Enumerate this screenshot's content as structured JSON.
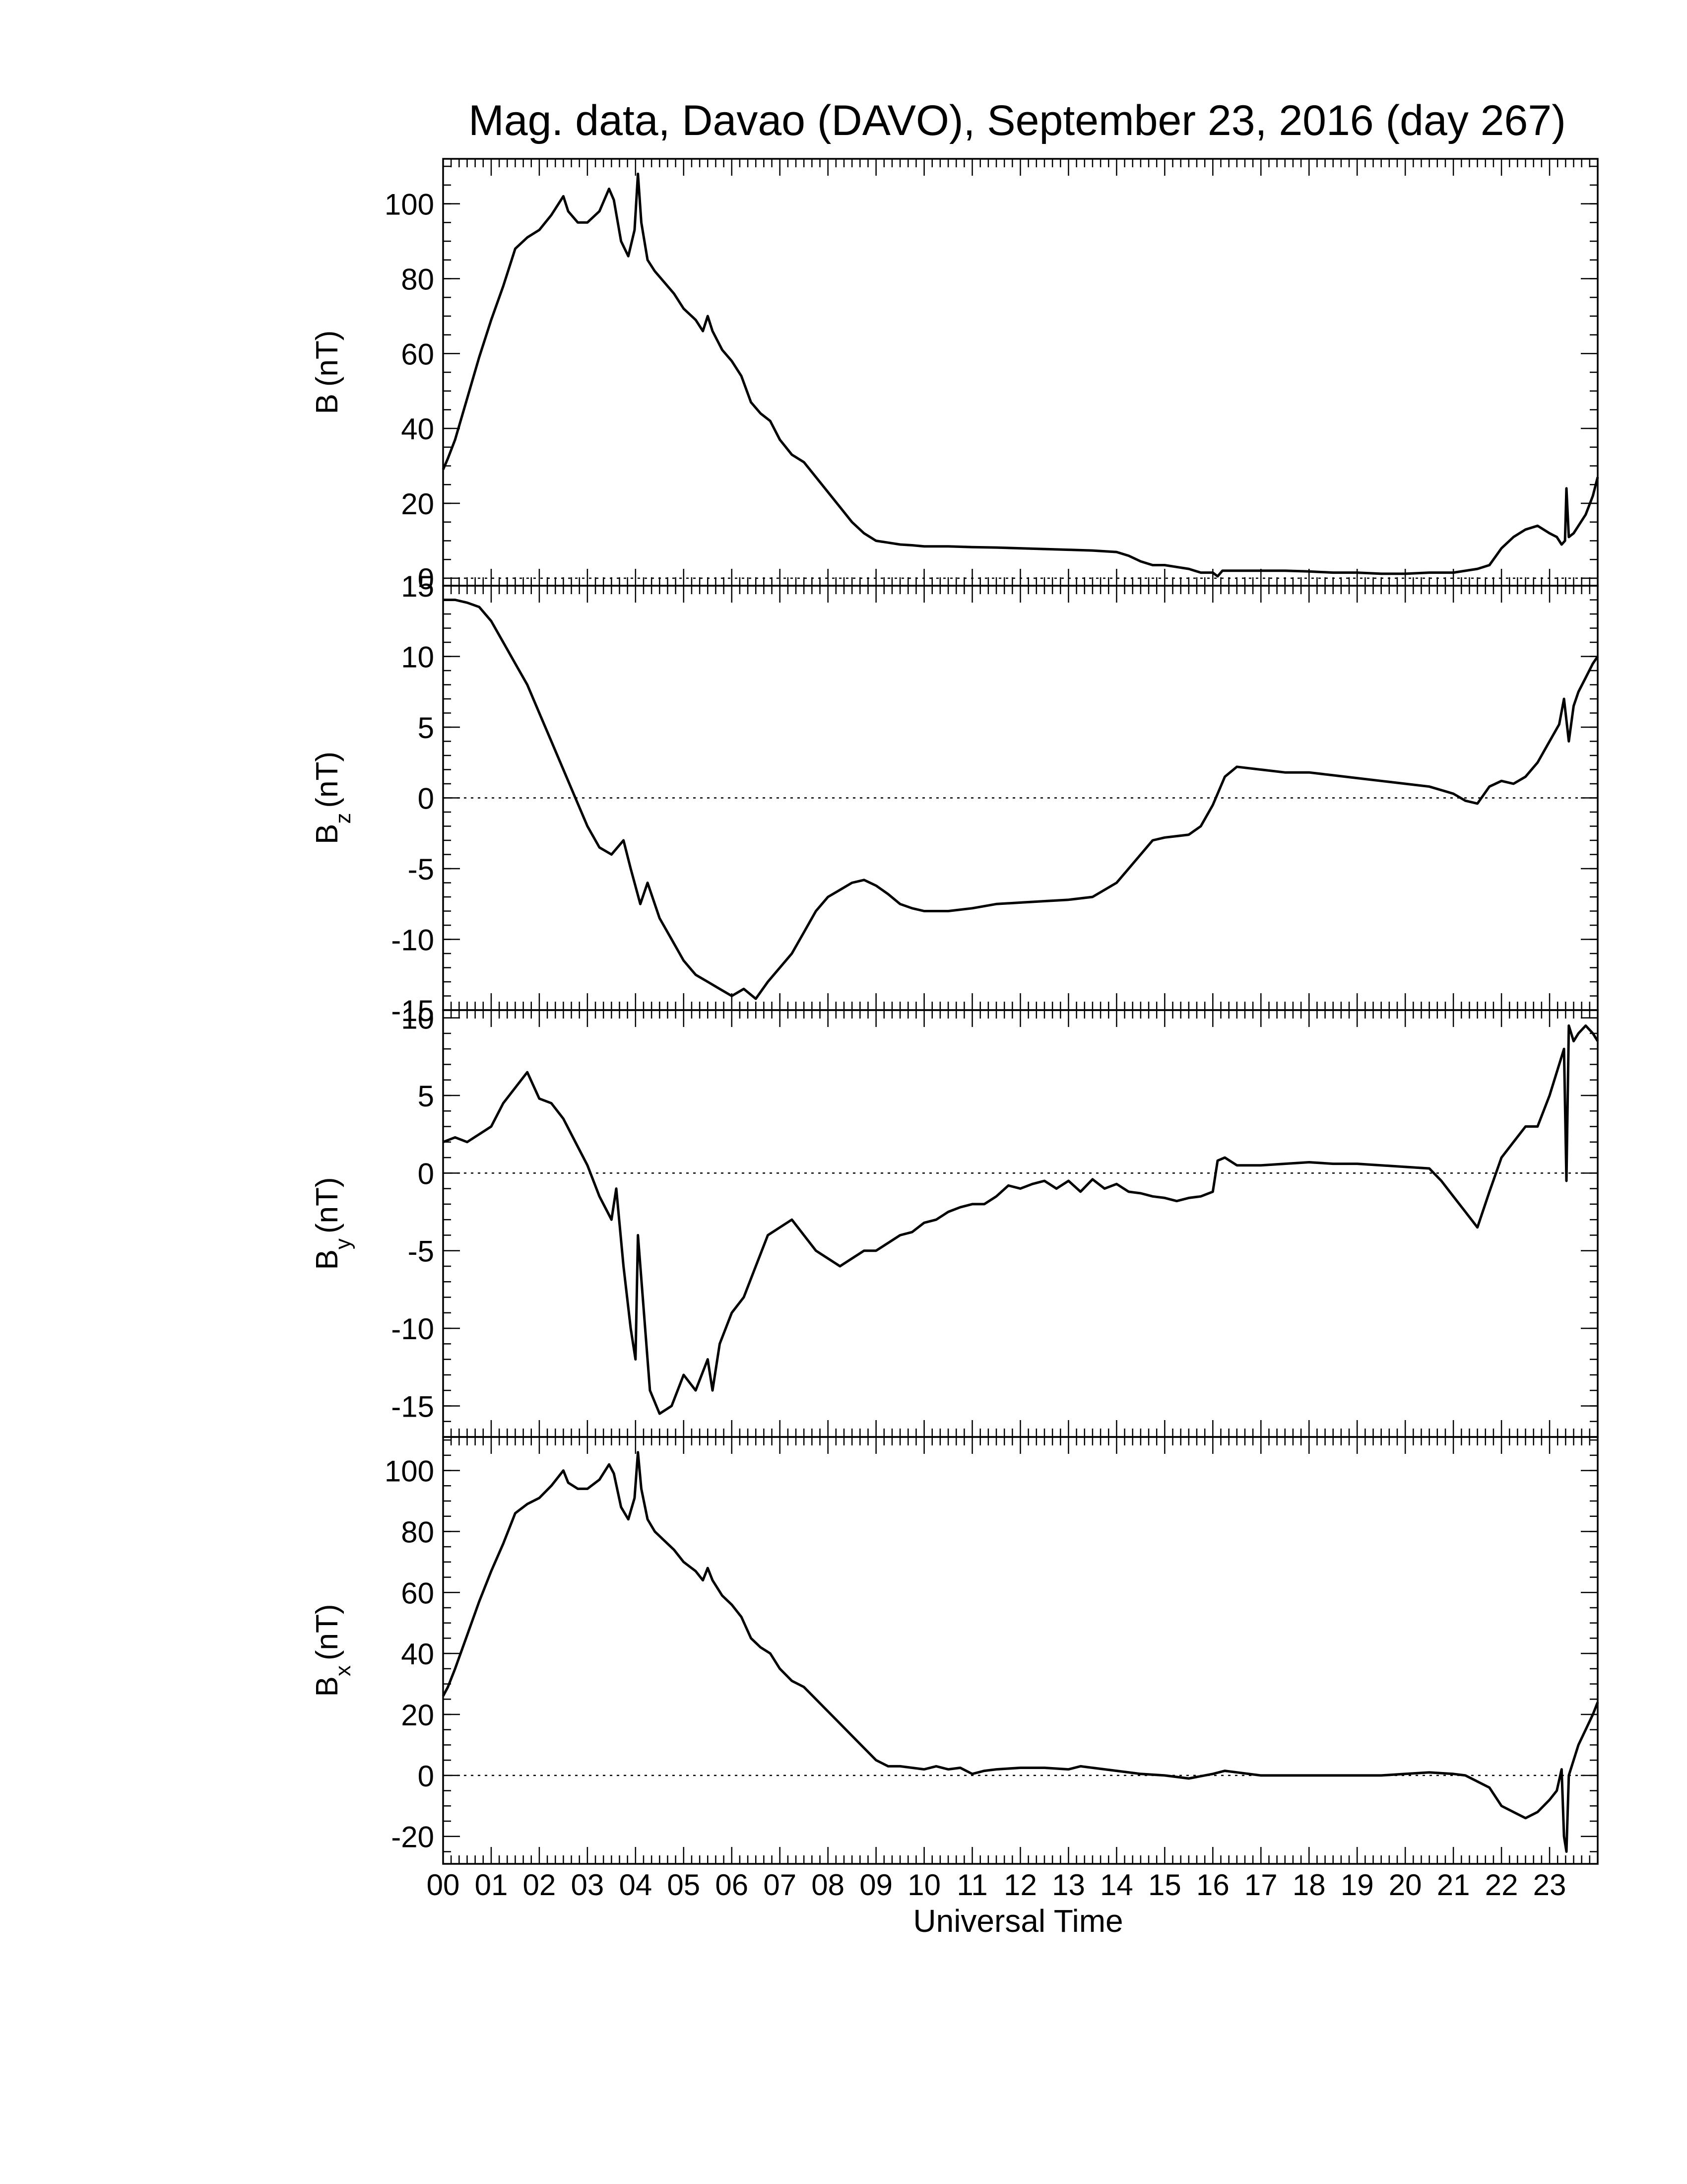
{
  "chart_data": {
    "type": "line",
    "title": "Mag. data, Davao (DAVO), September 23, 2016 (day 267)",
    "xlabel": "Universal Time",
    "x_tick_labels": [
      "00",
      "01",
      "02",
      "03",
      "04",
      "05",
      "06",
      "07",
      "08",
      "09",
      "10",
      "11",
      "12",
      "13",
      "14",
      "15",
      "16",
      "17",
      "18",
      "19",
      "20",
      "21",
      "22",
      "23"
    ],
    "xlim": [
      0,
      24
    ],
    "x_unit": "hours UT",
    "line_color": "#000000",
    "zero_line_style": "dotted",
    "panels": [
      {
        "id": "B",
        "ylabel_main": "B",
        "ylabel_sub": "",
        "ylabel_unit": "(nT)",
        "ylim": [
          -2,
          112
        ],
        "yticks": [
          0,
          20,
          40,
          60,
          80,
          100
        ],
        "ytick_labels": [
          "0",
          "20",
          "40",
          "60",
          "80",
          "100"
        ],
        "ytick_minor": 5,
        "series": {
          "x": [
            0,
            0.1,
            0.25,
            0.5,
            0.75,
            1.0,
            1.25,
            1.5,
            1.75,
            2.0,
            2.25,
            2.5,
            2.6,
            2.8,
            3.0,
            3.25,
            3.45,
            3.55,
            3.7,
            3.85,
            3.98,
            4.05,
            4.12,
            4.25,
            4.4,
            4.6,
            4.8,
            5.0,
            5.25,
            5.4,
            5.5,
            5.6,
            5.8,
            6.0,
            6.2,
            6.4,
            6.6,
            6.8,
            7.0,
            7.25,
            7.5,
            7.75,
            8.0,
            8.25,
            8.5,
            8.75,
            9.0,
            9.25,
            9.5,
            9.75,
            10.0,
            10.5,
            11.0,
            11.5,
            12.0,
            12.5,
            13.0,
            13.5,
            14.0,
            14.25,
            14.5,
            14.75,
            15.0,
            15.25,
            15.5,
            15.75,
            16.0,
            16.1,
            16.2,
            16.5,
            17.0,
            17.5,
            18.0,
            18.5,
            19.0,
            19.5,
            20.0,
            20.5,
            21.0,
            21.5,
            21.75,
            22.0,
            22.25,
            22.5,
            22.75,
            23.0,
            23.15,
            23.25,
            23.32,
            23.35,
            23.4,
            23.5,
            23.6,
            23.75,
            23.9,
            24.0
          ],
          "y": [
            29,
            32,
            37,
            48,
            59,
            69,
            78,
            88,
            91,
            93,
            97,
            102,
            98,
            95,
            95,
            98,
            104,
            101,
            90,
            86,
            93,
            108,
            95,
            85,
            82,
            79,
            76,
            72,
            69,
            66,
            70,
            66,
            61,
            58,
            54,
            47,
            44,
            42,
            37,
            33,
            31,
            27,
            23,
            19,
            15,
            12,
            10,
            9.5,
            9,
            8.8,
            8.5,
            8.5,
            8.3,
            8.2,
            8.0,
            7.8,
            7.6,
            7.4,
            7.0,
            6.0,
            4.5,
            3.5,
            3.5,
            3.0,
            2.5,
            1.5,
            1.5,
            0.5,
            2.0,
            2.0,
            2.0,
            2.0,
            1.8,
            1.5,
            1.5,
            1.2,
            1.2,
            1.5,
            1.5,
            2.5,
            3.5,
            8,
            11,
            13,
            14,
            12,
            11,
            9,
            10,
            24,
            11,
            12,
            14,
            17,
            22,
            27
          ]
        }
      },
      {
        "id": "Bz",
        "ylabel_main": "B",
        "ylabel_sub": "z",
        "ylabel_unit": "(nT)",
        "ylim": [
          -15,
          15
        ],
        "yticks": [
          -15,
          -10,
          -5,
          0,
          5,
          10,
          15
        ],
        "ytick_labels": [
          "-15",
          "-10",
          "-5",
          "0",
          "5",
          "10",
          "15"
        ],
        "ytick_minor": 1,
        "series": {
          "x": [
            0,
            0.25,
            0.5,
            0.75,
            1.0,
            1.25,
            1.5,
            1.75,
            2.0,
            2.25,
            2.5,
            2.75,
            3.0,
            3.25,
            3.5,
            3.75,
            3.9,
            4.1,
            4.25,
            4.5,
            4.75,
            5.0,
            5.25,
            5.5,
            5.75,
            6.0,
            6.25,
            6.5,
            6.75,
            7.0,
            7.25,
            7.5,
            7.75,
            8.0,
            8.25,
            8.5,
            8.75,
            9.0,
            9.25,
            9.5,
            9.75,
            10.0,
            10.5,
            11.0,
            11.5,
            12.0,
            12.5,
            13.0,
            13.5,
            14.0,
            14.25,
            14.5,
            14.75,
            15.0,
            15.25,
            15.5,
            15.75,
            16.0,
            16.25,
            16.5,
            17.0,
            17.5,
            18.0,
            18.5,
            19.0,
            19.5,
            20.0,
            20.5,
            21.0,
            21.25,
            21.5,
            21.75,
            22.0,
            22.25,
            22.5,
            22.75,
            23.0,
            23.2,
            23.3,
            23.4,
            23.5,
            23.6,
            23.75,
            23.9,
            24.0
          ],
          "y": [
            14,
            14,
            13.8,
            13.5,
            12.5,
            11,
            9.5,
            8,
            6,
            4,
            2,
            0,
            -2,
            -3.5,
            -4,
            -3,
            -5,
            -7.5,
            -6,
            -8.5,
            -10,
            -11.5,
            -12.5,
            -13,
            -13.5,
            -14,
            -13.5,
            -14.2,
            -13,
            -12,
            -11,
            -9.5,
            -8,
            -7,
            -6.5,
            -6,
            -5.8,
            -6.2,
            -6.8,
            -7.5,
            -7.8,
            -8,
            -8,
            -7.8,
            -7.5,
            -7.4,
            -7.3,
            -7.2,
            -7,
            -6,
            -5,
            -4,
            -3,
            -2.8,
            -2.7,
            -2.6,
            -2,
            -0.5,
            1.5,
            2.2,
            2.0,
            1.8,
            1.8,
            1.6,
            1.4,
            1.2,
            1.0,
            0.8,
            0.3,
            -0.2,
            -0.4,
            0.8,
            1.2,
            1.0,
            1.5,
            2.5,
            4.0,
            5.2,
            7.0,
            4.0,
            6.5,
            7.5,
            8.5,
            9.5,
            10
          ]
        }
      },
      {
        "id": "By",
        "ylabel_main": "B",
        "ylabel_sub": "y",
        "ylabel_unit": "(nT)",
        "ylim": [
          -17,
          10.5
        ],
        "yticks": [
          -15,
          -10,
          -5,
          0,
          5,
          10
        ],
        "ytick_labels": [
          "-15",
          "-10",
          "-5",
          "0",
          "5",
          "10"
        ],
        "ytick_minor": 1,
        "series": {
          "x": [
            0,
            0.25,
            0.5,
            0.75,
            1.0,
            1.25,
            1.5,
            1.75,
            2.0,
            2.25,
            2.5,
            2.75,
            3.0,
            3.25,
            3.5,
            3.6,
            3.75,
            3.9,
            4.0,
            4.05,
            4.15,
            4.3,
            4.5,
            4.75,
            5.0,
            5.25,
            5.5,
            5.6,
            5.75,
            6.0,
            6.25,
            6.5,
            6.75,
            7.0,
            7.25,
            7.5,
            7.75,
            8.0,
            8.25,
            8.5,
            8.75,
            9.0,
            9.25,
            9.5,
            9.75,
            10.0,
            10.25,
            10.5,
            10.75,
            11.0,
            11.25,
            11.5,
            11.75,
            12.0,
            12.25,
            12.5,
            12.75,
            13.0,
            13.25,
            13.5,
            13.75,
            14.0,
            14.25,
            14.5,
            14.75,
            15.0,
            15.25,
            15.5,
            15.75,
            16.0,
            16.1,
            16.25,
            16.5,
            17.0,
            17.5,
            18.0,
            18.5,
            19.0,
            19.5,
            20.0,
            20.5,
            20.75,
            21.0,
            21.25,
            21.5,
            21.75,
            22.0,
            22.25,
            22.5,
            22.75,
            23.0,
            23.2,
            23.3,
            23.35,
            23.4,
            23.5,
            23.6,
            23.75,
            23.9,
            24.0
          ],
          "y": [
            2,
            2.3,
            2.0,
            2.5,
            3.0,
            4.5,
            5.5,
            6.5,
            4.8,
            4.5,
            3.5,
            2.0,
            0.5,
            -1.5,
            -3,
            -1,
            -6,
            -10,
            -12,
            -4,
            -8,
            -14,
            -15.5,
            -15,
            -13,
            -14,
            -12,
            -14,
            -11,
            -9,
            -8,
            -6,
            -4,
            -3.5,
            -3,
            -4,
            -5,
            -5.5,
            -6,
            -5.5,
            -5,
            -5,
            -4.5,
            -4,
            -3.8,
            -3.2,
            -3.0,
            -2.5,
            -2.2,
            -2.0,
            -2.0,
            -1.5,
            -0.8,
            -1.0,
            -0.7,
            -0.5,
            -1.0,
            -0.5,
            -1.2,
            -0.4,
            -1.0,
            -0.7,
            -1.2,
            -1.3,
            -1.5,
            -1.6,
            -1.8,
            -1.6,
            -1.5,
            -1.2,
            0.8,
            1.0,
            0.5,
            0.5,
            0.6,
            0.7,
            0.6,
            0.6,
            0.5,
            0.4,
            0.3,
            -0.5,
            -1.5,
            -2.5,
            -3.5,
            -1.2,
            1.0,
            2.0,
            3.0,
            3.0,
            5.0,
            7.0,
            8.0,
            -0.5,
            9.5,
            8.5,
            9.0,
            9.5,
            9.0,
            8.5
          ]
        }
      },
      {
        "id": "Bx",
        "ylabel_main": "B",
        "ylabel_sub": "x",
        "ylabel_unit": "(nT)",
        "ylim": [
          -29,
          111
        ],
        "yticks": [
          -20,
          0,
          20,
          40,
          60,
          80,
          100
        ],
        "ytick_labels": [
          "-20",
          "0",
          "20",
          "40",
          "60",
          "80",
          "100"
        ],
        "ytick_minor": 5,
        "series": {
          "x": [
            0,
            0.1,
            0.25,
            0.5,
            0.75,
            1.0,
            1.25,
            1.5,
            1.75,
            2.0,
            2.25,
            2.5,
            2.6,
            2.8,
            3.0,
            3.25,
            3.45,
            3.55,
            3.7,
            3.85,
            3.98,
            4.05,
            4.12,
            4.25,
            4.4,
            4.6,
            4.8,
            5.0,
            5.25,
            5.4,
            5.5,
            5.6,
            5.8,
            6.0,
            6.2,
            6.4,
            6.6,
            6.8,
            7.0,
            7.25,
            7.5,
            7.75,
            8.0,
            8.25,
            8.5,
            8.75,
            9.0,
            9.25,
            9.5,
            9.75,
            10.0,
            10.25,
            10.5,
            10.75,
            11.0,
            11.25,
            11.5,
            12.0,
            12.5,
            13.0,
            13.25,
            13.5,
            14.0,
            14.5,
            15.0,
            15.5,
            16.0,
            16.25,
            16.5,
            17.0,
            17.5,
            18.0,
            18.5,
            19.0,
            19.5,
            20.0,
            20.5,
            21.0,
            21.25,
            21.5,
            21.75,
            22.0,
            22.25,
            22.5,
            22.75,
            23.0,
            23.15,
            23.25,
            23.3,
            23.35,
            23.4,
            23.5,
            23.6,
            23.75,
            23.9,
            24.0
          ],
          "y": [
            26,
            29,
            35,
            46,
            57,
            67,
            76,
            86,
            89,
            91,
            95,
            100,
            96,
            94,
            94,
            97,
            102,
            99,
            88,
            84,
            91,
            106,
            94,
            84,
            80,
            77,
            74,
            70,
            67,
            64,
            68,
            64,
            59,
            56,
            52,
            45,
            42,
            40,
            35,
            31,
            29,
            25,
            21,
            17,
            13,
            9,
            5,
            3,
            3,
            2.5,
            2,
            3,
            2,
            2.5,
            0.5,
            1.5,
            2.0,
            2.5,
            2.5,
            2.0,
            3.0,
            2.5,
            1.5,
            0.5,
            0,
            -1,
            0.5,
            1.5,
            1.0,
            0,
            0,
            0,
            0,
            0,
            0,
            0.5,
            1.0,
            0.5,
            0,
            -2,
            -4,
            -10,
            -12,
            -14,
            -12,
            -8,
            -5,
            2,
            -20,
            -25,
            0,
            5,
            10,
            15,
            20,
            24
          ]
        }
      }
    ]
  }
}
